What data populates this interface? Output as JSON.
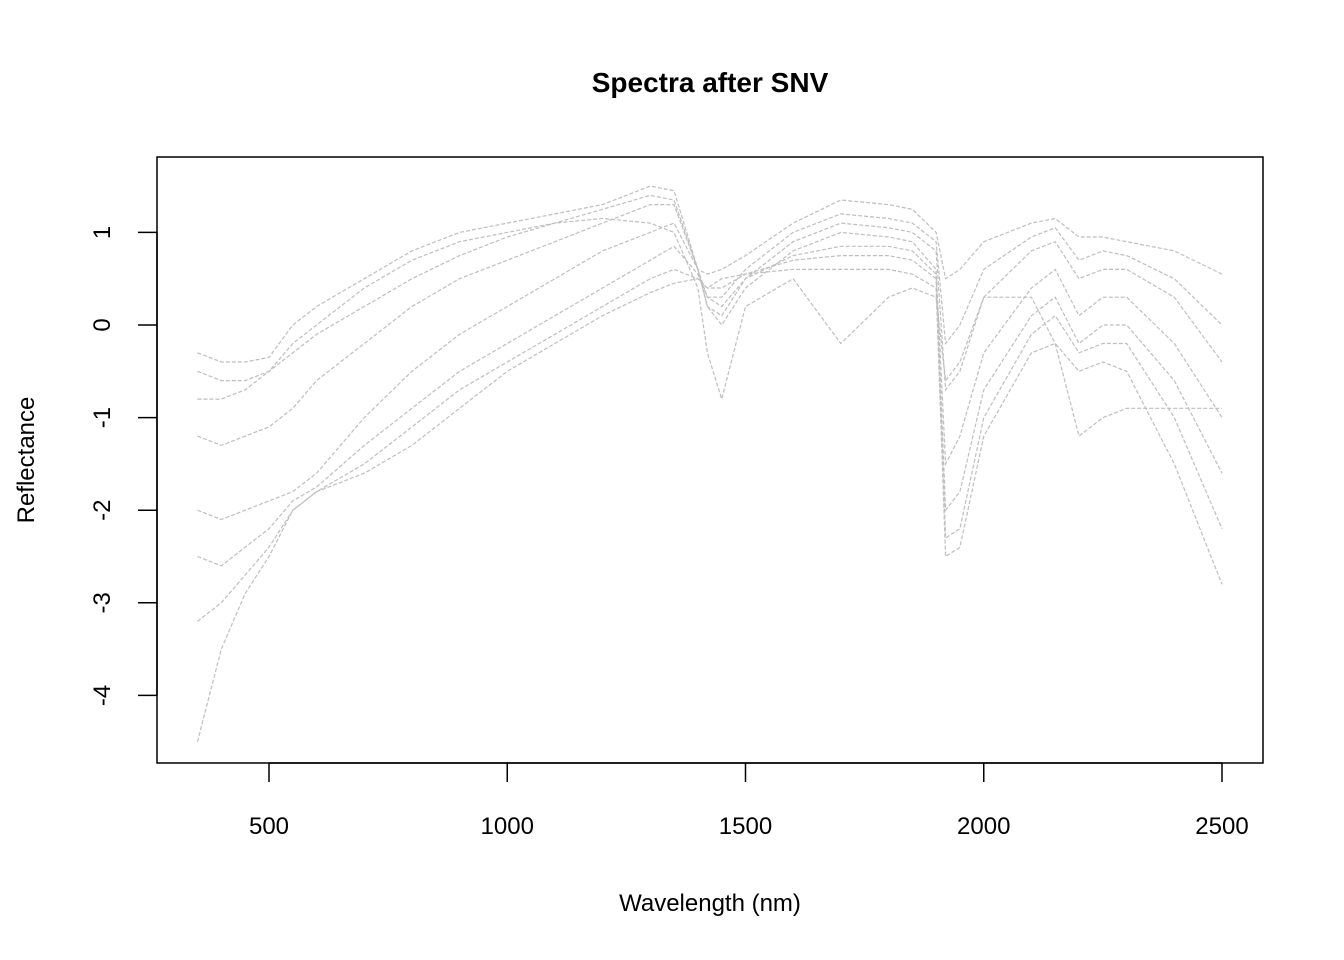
{
  "chart_data": {
    "type": "line",
    "title": "Spectra after SNV",
    "xlabel": "Wavelength (nm)",
    "ylabel": "Reflectance",
    "xlim": [
      350,
      2500
    ],
    "ylim": [
      -4.5,
      1.6
    ],
    "x_ticks": [
      "500",
      "1000",
      "1500",
      "2000",
      "2500"
    ],
    "y_ticks": [
      "-4",
      "-3",
      "-2",
      "-1",
      "0",
      "1"
    ],
    "grid": false,
    "legend": "none",
    "line_color": "#BEBEBE",
    "x": [
      350,
      400,
      450,
      500,
      550,
      600,
      700,
      800,
      900,
      1000,
      1100,
      1200,
      1300,
      1350,
      1400,
      1420,
      1450,
      1500,
      1600,
      1700,
      1800,
      1850,
      1900,
      1920,
      1950,
      2000,
      2100,
      2150,
      2200,
      2250,
      2300,
      2400,
      2500
    ],
    "series": [
      {
        "values": [
          -0.3,
          -0.4,
          -0.4,
          -0.35,
          0.0,
          0.2,
          0.5,
          0.8,
          1.0,
          1.1,
          1.2,
          1.3,
          1.5,
          1.45,
          0.6,
          0.55,
          0.6,
          0.75,
          1.1,
          1.35,
          1.3,
          1.25,
          1.0,
          0.5,
          0.6,
          0.9,
          1.1,
          1.15,
          0.95,
          0.95,
          0.9,
          0.8,
          0.55
        ]
      },
      {
        "values": [
          -0.8,
          -0.8,
          -0.7,
          -0.5,
          -0.3,
          -0.1,
          0.2,
          0.5,
          0.75,
          0.95,
          1.1,
          1.25,
          1.4,
          1.35,
          0.6,
          0.3,
          0.3,
          0.6,
          1.0,
          1.2,
          1.15,
          1.1,
          0.9,
          -0.2,
          0.0,
          0.6,
          0.95,
          1.05,
          0.7,
          0.8,
          0.75,
          0.5,
          0.0
        ]
      },
      {
        "values": [
          -1.2,
          -1.3,
          -1.2,
          -1.1,
          -0.9,
          -0.6,
          -0.2,
          0.2,
          0.5,
          0.7,
          0.9,
          1.1,
          1.3,
          1.3,
          0.6,
          0.2,
          0.1,
          0.5,
          0.9,
          1.1,
          1.05,
          1.0,
          0.8,
          -0.7,
          -0.5,
          0.3,
          0.8,
          0.9,
          0.5,
          0.6,
          0.6,
          0.3,
          -0.4
        ]
      },
      {
        "values": [
          -2.0,
          -2.1,
          -2.0,
          -1.9,
          -1.8,
          -1.6,
          -1.0,
          -0.5,
          -0.1,
          0.2,
          0.5,
          0.8,
          1.0,
          1.1,
          0.6,
          0.2,
          0.0,
          0.4,
          0.8,
          1.0,
          0.95,
          0.9,
          0.6,
          -1.5,
          -1.2,
          -0.3,
          0.4,
          0.6,
          0.1,
          0.3,
          0.3,
          -0.2,
          -1.0
        ]
      },
      {
        "values": [
          -2.5,
          -2.6,
          -2.4,
          -2.2,
          -1.9,
          -1.75,
          -1.3,
          -0.9,
          -0.5,
          -0.2,
          0.1,
          0.4,
          0.7,
          0.85,
          0.55,
          0.3,
          0.2,
          0.5,
          0.75,
          0.85,
          0.85,
          0.8,
          0.55,
          -2.0,
          -1.8,
          -0.7,
          0.1,
          0.3,
          -0.2,
          0.0,
          0.0,
          -0.6,
          -1.6
        ]
      },
      {
        "values": [
          -3.2,
          -3.0,
          -2.7,
          -2.4,
          -2.0,
          -1.8,
          -1.5,
          -1.1,
          -0.7,
          -0.4,
          -0.1,
          0.2,
          0.5,
          0.6,
          0.5,
          0.4,
          0.4,
          0.55,
          0.7,
          0.75,
          0.75,
          0.7,
          0.5,
          -2.3,
          -2.2,
          -1.0,
          -0.1,
          0.1,
          -0.3,
          -0.2,
          -0.2,
          -1.0,
          -2.2
        ]
      },
      {
        "values": [
          -4.5,
          -3.5,
          -2.9,
          -2.5,
          -2.0,
          -1.8,
          -1.6,
          -1.3,
          -0.9,
          -0.5,
          -0.2,
          0.1,
          0.35,
          0.45,
          0.5,
          0.4,
          0.5,
          0.55,
          0.6,
          0.6,
          0.6,
          0.55,
          0.4,
          -2.5,
          -2.4,
          -1.2,
          -0.3,
          -0.2,
          -0.5,
          -0.4,
          -0.5,
          -1.5,
          -2.8
        ]
      },
      {
        "values": [
          -0.5,
          -0.6,
          -0.6,
          -0.5,
          -0.2,
          0.0,
          0.4,
          0.7,
          0.9,
          1.0,
          1.1,
          1.15,
          1.1,
          1.0,
          0.4,
          -0.3,
          -0.8,
          0.2,
          0.5,
          -0.2,
          0.3,
          0.4,
          0.3,
          -0.6,
          -0.4,
          0.3,
          0.3,
          -0.2,
          -1.2,
          -1.0,
          -0.9,
          -0.9,
          -0.9
        ]
      }
    ]
  }
}
